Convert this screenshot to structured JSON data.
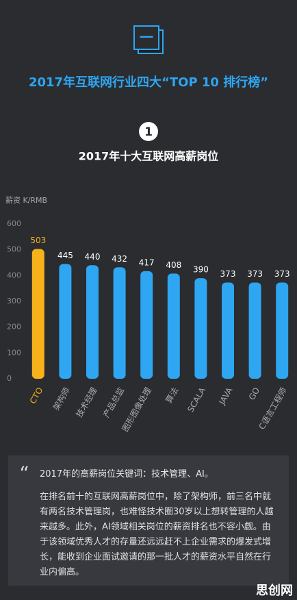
{
  "header": {
    "icon_text": "一",
    "title": "2017年互联网行业四大“TOP 10 排行榜”"
  },
  "chart_data": {
    "type": "bar",
    "number": "1",
    "title": "2017年十大互联网高薪岗位",
    "y_label": "薪资 K/RMB",
    "categories": [
      "CTO",
      "架构师",
      "技术经理",
      "产品总监",
      "图形图像处理",
      "算法",
      "SCALA",
      "JAVA",
      "GO",
      "C语言工程师"
    ],
    "values": [
      503,
      445,
      440,
      432,
      417,
      408,
      390,
      373,
      373,
      373
    ],
    "colors": [
      "#f7b21b",
      "#2ea6f2",
      "#2ea6f2",
      "#2ea6f2",
      "#2ea6f2",
      "#2ea6f2",
      "#2ea6f2",
      "#2ea6f2",
      "#2ea6f2",
      "#2ea6f2"
    ],
    "ylim": [
      0,
      600
    ],
    "yticks": [
      0,
      100,
      200,
      300,
      400,
      500,
      600
    ]
  },
  "note": {
    "quote": "“",
    "keywords": "2017年的高薪岗位关键词：技术管理、AI。",
    "body": "在排名前十的互联网高薪岗位中，除了架构师，前三名中就有两名技术管理岗，也难怪技术圈30岁以上想转管理的人越来越多。此外，AI领域相关岗位的薪资排名也不容小觑。由于该领域优秀人才的存量还远远赶不上企业需求的爆发式增长，能收到企业面试邀请的那一批人才的薪资水平自然在行业内偏高。"
  },
  "watermark": "思创网"
}
